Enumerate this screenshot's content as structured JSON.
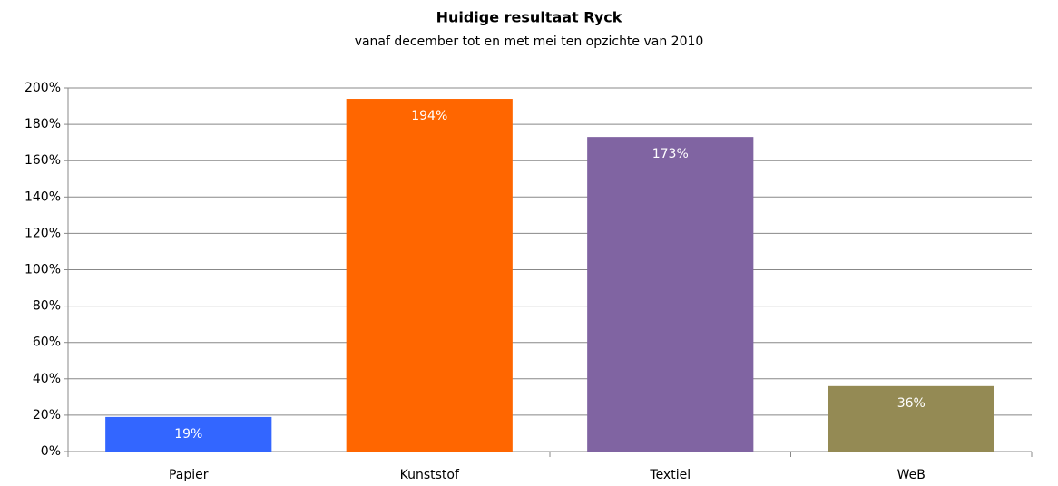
{
  "chart_data": {
    "type": "bar",
    "title": "Huidige resultaat Ryck",
    "subtitle": "vanaf december tot en met mei ten opzichte van 2010",
    "categories": [
      "Papier",
      "Kunststof",
      "Textiel",
      "WeB"
    ],
    "values": [
      19,
      194,
      173,
      36
    ],
    "value_labels": [
      "19%",
      "194%",
      "173%",
      "36%"
    ],
    "colors": [
      "#3366ff",
      "#ff6600",
      "#8064a2",
      "#948a54"
    ],
    "ylim": [
      0,
      200
    ],
    "yticks": [
      {
        "value": 0,
        "label": "0%"
      },
      {
        "value": 20,
        "label": "20%"
      },
      {
        "value": 40,
        "label": "40%"
      },
      {
        "value": 60,
        "label": "60%"
      },
      {
        "value": 80,
        "label": "80%"
      },
      {
        "value": 100,
        "label": "100%"
      },
      {
        "value": 120,
        "label": "120%"
      },
      {
        "value": 140,
        "label": "140%"
      },
      {
        "value": 160,
        "label": "160%"
      },
      {
        "value": 180,
        "label": "180%"
      },
      {
        "value": 200,
        "label": "200%"
      }
    ],
    "grid": true
  }
}
